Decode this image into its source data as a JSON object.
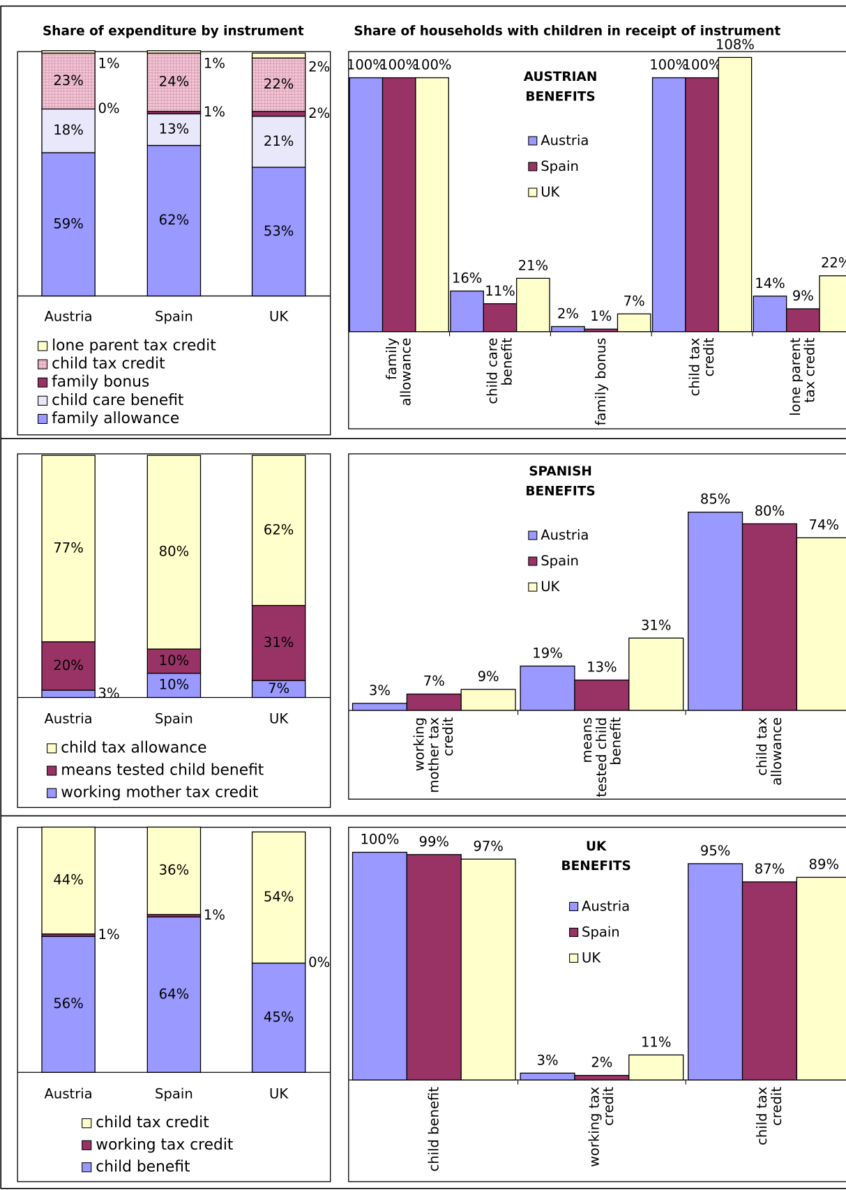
{
  "headers": [
    "Share of expenditure by instrument",
    "Share of households with children in receipt of instrument"
  ],
  "chart_data": [
    {
      "type": "stacked_bar",
      "categories": [
        "Austria",
        "Spain",
        "UK"
      ],
      "ylim": [
        0,
        100
      ],
      "series": [
        {
          "name": "family allowance",
          "color": "#9999ff",
          "values": [
            59,
            62,
            53
          ],
          "value_labels": [
            "59%",
            "62%",
            "53%"
          ]
        },
        {
          "name": "child care benefit",
          "color": "#e8e8fa",
          "values": [
            18,
            13,
            21
          ],
          "value_labels": [
            "18%",
            "13%",
            "21%"
          ]
        },
        {
          "name": "family bonus",
          "color": "#993366",
          "values": [
            0,
            1,
            2
          ],
          "value_labels": [
            "0%",
            "1%",
            "2%"
          ]
        },
        {
          "name": "child tax credit",
          "color": "#f2c4d4",
          "hatch": "grid",
          "values": [
            23,
            24,
            22
          ],
          "value_labels": [
            "23%",
            "24%",
            "22%"
          ]
        },
        {
          "name": "lone parent tax credit",
          "color": "#ffffcc",
          "values": [
            1,
            1,
            2
          ],
          "value_labels": [
            "1%",
            "1%",
            "2%"
          ]
        }
      ]
    },
    {
      "type": "grouped_bar",
      "title": "AUSTRIAN\nBENEFITS",
      "ylim": [
        0,
        110
      ],
      "categories": [
        "family\nallowance",
        "child care\nbenefit",
        "family bonus",
        "child tax\ncredit",
        "lone parent\ntax credit"
      ],
      "series": [
        {
          "name": "Austria",
          "color": "#9999ff",
          "values": [
            100,
            16,
            2,
            100,
            14
          ],
          "value_labels": [
            "100%",
            "16%",
            "2%",
            "100%",
            "14%"
          ]
        },
        {
          "name": "Spain",
          "color": "#993366",
          "values": [
            100,
            11,
            1,
            100,
            9
          ],
          "value_labels": [
            "100%",
            "11%",
            "1%",
            "100%",
            "9%"
          ]
        },
        {
          "name": "UK",
          "color": "#ffffcc",
          "values": [
            100,
            21,
            7,
            108,
            22
          ],
          "value_labels": [
            "100%",
            "21%",
            "7%",
            "108%",
            "22%"
          ]
        }
      ]
    },
    {
      "type": "stacked_bar",
      "categories": [
        "Austria",
        "Spain",
        "UK"
      ],
      "ylim": [
        0,
        100
      ],
      "series": [
        {
          "name": "working mother tax credit",
          "color": "#9999ff",
          "values": [
            3,
            10,
            7
          ],
          "value_labels": [
            "3%",
            "10%",
            "7%"
          ]
        },
        {
          "name": "means tested child benefit",
          "color": "#993366",
          "values": [
            20,
            10,
            31
          ],
          "value_labels": [
            "20%",
            "10%",
            "31%"
          ]
        },
        {
          "name": "child tax allowance",
          "color": "#ffffcc",
          "values": [
            77,
            80,
            62
          ],
          "value_labels": [
            "77%",
            "80%",
            "62%"
          ]
        }
      ]
    },
    {
      "type": "grouped_bar",
      "title": "SPANISH\nBENEFITS",
      "ylim": [
        0,
        110
      ],
      "categories": [
        "working\nmother tax\ncredit",
        "means\ntested child\nbenefit",
        "child tax\nallowance"
      ],
      "series": [
        {
          "name": "Austria",
          "color": "#9999ff",
          "values": [
            3,
            19,
            85
          ],
          "value_labels": [
            "3%",
            "19%",
            "85%"
          ]
        },
        {
          "name": "Spain",
          "color": "#993366",
          "values": [
            7,
            13,
            80
          ],
          "value_labels": [
            "7%",
            "13%",
            "80%"
          ]
        },
        {
          "name": "UK",
          "color": "#ffffcc",
          "values": [
            9,
            31,
            74
          ],
          "value_labels": [
            "9%",
            "31%",
            "74%"
          ]
        }
      ]
    },
    {
      "type": "stacked_bar",
      "categories": [
        "Austria",
        "Spain",
        "UK"
      ],
      "ylim": [
        0,
        100
      ],
      "series": [
        {
          "name": "child benefit",
          "color": "#9999ff",
          "values": [
            56,
            64,
            45
          ],
          "value_labels": [
            "56%",
            "64%",
            "45%"
          ]
        },
        {
          "name": "working tax credit",
          "color": "#993366",
          "values": [
            1,
            1,
            0
          ],
          "value_labels": [
            "1%",
            "1%",
            "0%"
          ]
        },
        {
          "name": "child tax credit",
          "color": "#ffffcc",
          "values": [
            44,
            36,
            54
          ],
          "value_labels": [
            "44%",
            "36%",
            "54%"
          ]
        }
      ]
    },
    {
      "type": "grouped_bar",
      "title": "UK\nBENEFITS",
      "ylim": [
        0,
        110
      ],
      "categories": [
        "child benefit",
        "working tax\ncredit",
        "child tax\ncredit"
      ],
      "series": [
        {
          "name": "Austria",
          "color": "#9999ff",
          "values": [
            100,
            3,
            95
          ],
          "value_labels": [
            "100%",
            "3%",
            "95%"
          ]
        },
        {
          "name": "Spain",
          "color": "#993366",
          "values": [
            99,
            2,
            87
          ],
          "value_labels": [
            "99%",
            "2%",
            "87%"
          ]
        },
        {
          "name": "UK",
          "color": "#ffffcc",
          "values": [
            97,
            11,
            89
          ],
          "value_labels": [
            "97%",
            "11%",
            "89%"
          ]
        }
      ]
    }
  ]
}
